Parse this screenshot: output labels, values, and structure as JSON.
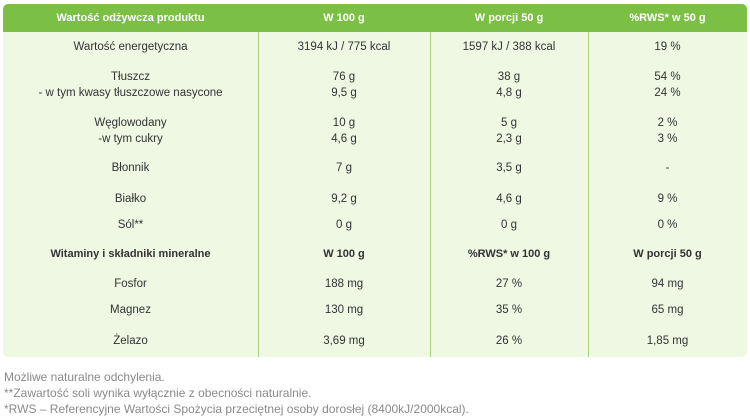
{
  "header": [
    "Wartość odżywcza produktu",
    "W 100 g",
    "W porcji 50 g",
    "%RWS* w 50 g"
  ],
  "rows": [
    [
      "Wartość energetyczna",
      "3194 kJ / 775 kcal",
      "1597 kJ / 388 kcal",
      "19 %"
    ],
    [
      "Tłuszcz",
      "76 g",
      "38 g",
      "54 %"
    ],
    [
      "- w tym kwasy tłuszczowe nasycone",
      "9,5 g",
      "4,8 g",
      "24 %"
    ],
    [
      "Węglowodany",
      "10 g",
      "5 g",
      "2 %"
    ],
    [
      "-w tym cukry",
      "4,6 g",
      "2,3 g",
      "3 %"
    ],
    [
      "Błonnik",
      "7 g",
      "3,5 g",
      "-"
    ],
    [
      "Białko",
      "9,2 g",
      "4,6 g",
      "9 %"
    ],
    [
      "Sól**",
      "0 g",
      "0 g",
      "0 %"
    ]
  ],
  "minerals_header": [
    "Witaminy i składniki mineralne",
    "W 100 g",
    "%RWS* w 100 g",
    "W porcji 50 g"
  ],
  "minerals": [
    [
      "Fosfor",
      "188 mg",
      "27 %",
      "94 mg"
    ],
    [
      "Magnez",
      "130 mg",
      "35 %",
      "65 mg"
    ],
    [
      "Żelazo",
      "3,69 mg",
      "26 %",
      "1,85 mg"
    ]
  ],
  "footnotes": [
    "Możliwe naturalne odchylenia.",
    "**Zawartość soli wynika wyłącznie z obecności naturalnie.",
    "*RWS – Referencyjne Wartości Spożycia przeciętnej osoby dorosłej (8400kJ/2000kcal)."
  ],
  "colors": {
    "header": "#7bbf45",
    "body": "#eef8e3"
  }
}
